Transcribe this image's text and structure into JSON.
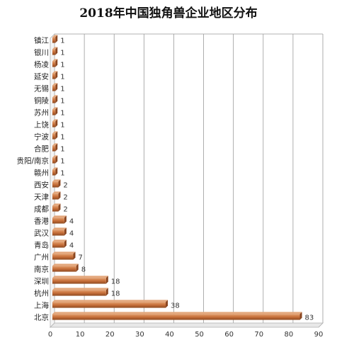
{
  "chart_data": {
    "type": "bar",
    "orientation": "horizontal",
    "title": "2018年中国独角兽企业地区分布",
    "categories": [
      "镇江",
      "银川",
      "杨凌",
      "延安",
      "无锡",
      "铜陵",
      "苏州",
      "上饶",
      "宁波",
      "合肥",
      "贵阳/南京",
      "赣州",
      "西安",
      "天津",
      "成都",
      "香港",
      "武汉",
      "青岛",
      "广州",
      "南京",
      "深圳",
      "杭州",
      "上海",
      "北京"
    ],
    "values": [
      1,
      1,
      1,
      1,
      1,
      1,
      1,
      1,
      1,
      1,
      1,
      1,
      2,
      2,
      2,
      4,
      4,
      4,
      7,
      8,
      18,
      18,
      38,
      83
    ],
    "xlim": [
      0,
      90
    ],
    "xticks": [
      "0",
      "10",
      "20",
      "30",
      "40",
      "50",
      "60",
      "70",
      "80",
      "90"
    ],
    "grid": true,
    "legend": "none",
    "bar_color": "#c8703a"
  }
}
